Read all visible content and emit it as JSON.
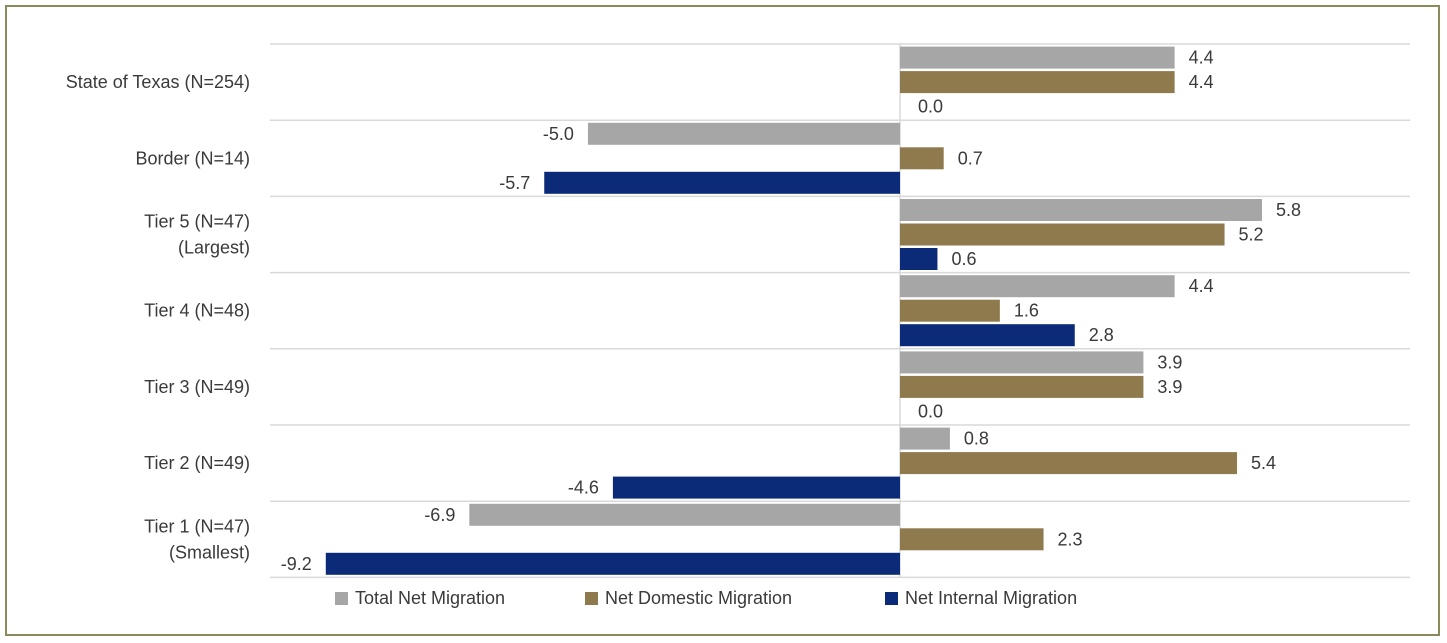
{
  "chart_data": {
    "type": "bar",
    "orientation": "horizontal",
    "title": "",
    "xlabel": "",
    "ylabel": "",
    "xlim": [
      -9.8,
      7.0
    ],
    "categories": [
      [
        "State of Texas (N=254)"
      ],
      [
        "Border (N=14)"
      ],
      [
        "Tier 5 (N=47)",
        "(Largest)"
      ],
      [
        "Tier 4 (N=48)"
      ],
      [
        "Tier 3 (N=49)"
      ],
      [
        "Tier 2 (N=49)"
      ],
      [
        "Tier 1 (N=47)",
        "(Smallest)"
      ]
    ],
    "series": [
      {
        "name": "Total Net Migration",
        "color": "#a6a6a6",
        "values": [
          4.4,
          -5.0,
          5.8,
          4.4,
          3.9,
          0.8,
          -6.9
        ],
        "labels": [
          "4.4",
          "-5.0",
          "5.8",
          "4.4",
          "3.9",
          "0.8",
          "-6.9"
        ]
      },
      {
        "name": "Net Domestic Migration",
        "color": "#8f7a4e",
        "values": [
          4.4,
          0.7,
          5.2,
          1.6,
          3.9,
          5.4,
          2.3
        ],
        "labels": [
          "4.4",
          "0.7",
          "5.2",
          "1.6",
          "3.9",
          "5.4",
          "2.3"
        ]
      },
      {
        "name": "Net Internal Migration",
        "color": "#0b2a78",
        "values": [
          0.0,
          -5.7,
          0.6,
          2.8,
          0.0,
          -4.6,
          -9.2
        ],
        "labels": [
          "0.0",
          "-5.7",
          "0.6",
          "2.8",
          "0.0",
          "-4.6",
          "-9.2"
        ]
      }
    ],
    "grid": "horizontal separators between categories",
    "legend_position": "bottom"
  }
}
